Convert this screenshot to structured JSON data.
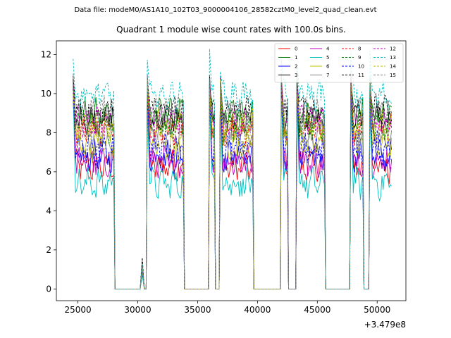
{
  "figure": {
    "suptitle": "Data file: modeM0/AS1A10_102T03_9000004106_28582cztM0_level2_quad_clean.evt",
    "title": "Quadrant 1 module wise count rates with 100.0s bins."
  },
  "colors": {
    "text": "#000000",
    "axes": "#000000",
    "background": "#ffffff",
    "legend_frame": "#cccccc"
  },
  "chart_data": {
    "type": "line",
    "title": "Quadrant 1 module wise count rates with 100.0s bins.",
    "xlabel": "",
    "ylabel": "",
    "x_offset_label": "+3.479e8",
    "xlim": [
      23200,
      52400
    ],
    "ylim": [
      -0.6,
      12.7
    ],
    "x_ticks": [
      25000,
      30000,
      35000,
      40000,
      45000,
      50000
    ],
    "x_tick_labels": [
      "25000",
      "30000",
      "35000",
      "40000",
      "45000",
      "50000"
    ],
    "y_ticks": [
      0,
      2,
      4,
      6,
      8,
      10,
      12
    ],
    "y_tick_labels": [
      "0",
      "2",
      "4",
      "6",
      "8",
      "10",
      "12"
    ],
    "grid": false,
    "legend_position": "top-right",
    "legend_columns": 4,
    "segments": [
      {
        "kind": "on",
        "start": 24600,
        "end": 28000
      },
      {
        "kind": "off",
        "start": 28100,
        "end": 30100
      },
      {
        "kind": "blip",
        "start": 30200,
        "end": 30550,
        "peak_fraction": 0.15
      },
      {
        "kind": "off",
        "start": 30600,
        "end": 30700
      },
      {
        "kind": "on",
        "start": 30800,
        "end": 33800
      },
      {
        "kind": "off",
        "start": 33900,
        "end": 35900
      },
      {
        "kind": "on",
        "start": 36000,
        "end": 36400
      },
      {
        "kind": "off",
        "start": 36500,
        "end": 36800
      },
      {
        "kind": "on",
        "start": 36900,
        "end": 39600
      },
      {
        "kind": "off",
        "start": 39700,
        "end": 41900
      },
      {
        "kind": "on",
        "start": 42000,
        "end": 42500
      },
      {
        "kind": "off",
        "start": 42600,
        "end": 43200
      },
      {
        "kind": "on",
        "start": 43300,
        "end": 45600
      },
      {
        "kind": "off",
        "start": 45700,
        "end": 47700
      },
      {
        "kind": "on",
        "start": 47800,
        "end": 48800
      },
      {
        "kind": "off",
        "start": 48900,
        "end": 49300
      },
      {
        "kind": "on",
        "start": 49400,
        "end": 51200
      }
    ],
    "series": [
      {
        "name": "0",
        "color": "#ff0000",
        "dash": "solid",
        "level": 6.3,
        "spike": 10.6
      },
      {
        "name": "1",
        "color": "#008000",
        "dash": "solid",
        "level": 8.9,
        "spike": 11.0
      },
      {
        "name": "2",
        "color": "#0000ff",
        "dash": "solid",
        "level": 6.8,
        "spike": 10.5
      },
      {
        "name": "3",
        "color": "#000000",
        "dash": "solid",
        "level": 8.7,
        "spike": 10.9
      },
      {
        "name": "4",
        "color": "#bf00bf",
        "dash": "solid",
        "level": 6.5,
        "spike": 10.3
      },
      {
        "name": "5",
        "color": "#00bfbf",
        "dash": "solid",
        "level": 5.4,
        "spike": 10.2
      },
      {
        "name": "6",
        "color": "#bfbf00",
        "dash": "solid",
        "level": 7.4,
        "spike": 10.7
      },
      {
        "name": "7",
        "color": "#808080",
        "dash": "solid",
        "level": 7.9,
        "spike": 10.6
      },
      {
        "name": "8",
        "color": "#ff0000",
        "dash": "dashed",
        "level": 8.1,
        "spike": 10.8
      },
      {
        "name": "9",
        "color": "#008000",
        "dash": "dashed",
        "level": 8.4,
        "spike": 10.9
      },
      {
        "name": "10",
        "color": "#0000ff",
        "dash": "dashed",
        "level": 7.2,
        "spike": 10.4
      },
      {
        "name": "11",
        "color": "#000000",
        "dash": "dashed",
        "level": 9.1,
        "spike": 11.1
      },
      {
        "name": "12",
        "color": "#bf00bf",
        "dash": "dashed",
        "level": 8.6,
        "spike": 10.9
      },
      {
        "name": "13",
        "color": "#00bfbf",
        "dash": "dashed",
        "level": 9.9,
        "spike": 12.1
      },
      {
        "name": "14",
        "color": "#bfbf00",
        "dash": "dashed",
        "level": 8.3,
        "spike": 10.6
      },
      {
        "name": "15",
        "color": "#808080",
        "dash": "dashed",
        "level": 9.0,
        "spike": 11.0
      }
    ]
  }
}
